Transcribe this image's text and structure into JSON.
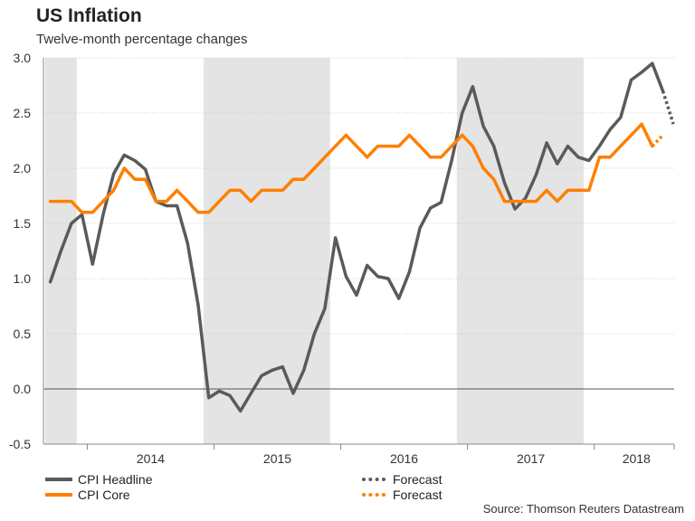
{
  "title": "US Inflation",
  "subtitle": "Twelve-month percentage changes",
  "source": "Source: Thomson Reuters Datastream",
  "colors": {
    "headline": "#5a5a5a",
    "core": "#ff7f00",
    "shade": "#e4e4e4",
    "grid": "#cccccc",
    "zero": "#555555"
  },
  "legend": {
    "headline": "CPI Headline",
    "core": "CPI Core",
    "forecast_headline": "Forecast",
    "forecast_core": "Forecast"
  },
  "chart_data": {
    "type": "line",
    "title": "US Inflation",
    "subtitle": "Twelve-month percentage changes",
    "xlabel": "",
    "ylabel": "",
    "ylim": [
      -0.5,
      3.0
    ],
    "yticks": [
      -0.5,
      0.0,
      0.5,
      1.0,
      1.5,
      2.0,
      2.5,
      3.0
    ],
    "ytick_labels": [
      "-0.5",
      "0.0",
      "0.5",
      "1.0",
      "1.5",
      "2.0",
      "2.5",
      "3.0"
    ],
    "x_start_index": 0,
    "x_end_index": 62,
    "x_index_note": "month index, 0 = Sep 2013",
    "year_labels": [
      {
        "label": "2014",
        "center_index": 9.5
      },
      {
        "label": "2015",
        "center_index": 21.5
      },
      {
        "label": "2016",
        "center_index": 33.5
      },
      {
        "label": "2017",
        "center_index": 45.5
      },
      {
        "label": "2018",
        "center_index": 55.5
      }
    ],
    "shaded_years": [
      {
        "from_index": 0,
        "to_index": 3
      },
      {
        "from_index": 15,
        "to_index": 27
      },
      {
        "from_index": 39,
        "to_index": 51
      }
    ],
    "series": [
      {
        "name": "CPI Headline",
        "start_index": 0,
        "values": [
          0.97,
          1.25,
          1.5,
          1.58,
          1.13,
          1.58,
          1.95,
          2.12,
          2.07,
          1.99,
          1.7,
          1.66,
          1.66,
          1.32,
          0.76,
          -0.08,
          -0.02,
          -0.06,
          -0.2,
          -0.04,
          0.12,
          0.17,
          0.2,
          -0.04,
          0.17,
          0.5,
          0.73,
          1.37,
          1.02,
          0.85,
          1.12,
          1.02,
          1.0,
          0.82,
          1.06,
          1.46,
          1.64,
          1.69,
          2.07,
          2.5,
          2.74,
          2.38,
          2.2,
          1.87,
          1.63,
          1.73,
          1.94,
          2.23,
          2.04,
          2.2,
          2.1,
          2.07,
          2.2,
          2.35,
          2.46,
          2.8,
          2.87,
          2.95,
          2.7
        ]
      },
      {
        "name": "CPI Core",
        "start_index": 0,
        "values": [
          1.7,
          1.7,
          1.7,
          1.6,
          1.6,
          1.7,
          1.8,
          2.0,
          1.9,
          1.9,
          1.7,
          1.7,
          1.8,
          1.7,
          1.6,
          1.6,
          1.7,
          1.8,
          1.8,
          1.7,
          1.8,
          1.8,
          1.8,
          1.9,
          1.9,
          2.0,
          2.1,
          2.2,
          2.3,
          2.2,
          2.1,
          2.2,
          2.2,
          2.2,
          2.3,
          2.2,
          2.1,
          2.1,
          2.2,
          2.3,
          2.2,
          2.0,
          1.9,
          1.7,
          1.7,
          1.7,
          1.7,
          1.8,
          1.7,
          1.8,
          1.8,
          1.8,
          2.1,
          2.1,
          2.2,
          2.3,
          2.4,
          2.2
        ]
      },
      {
        "name": "Forecast (Headline)",
        "start_index": 58,
        "style": "dotted",
        "values": [
          2.7,
          2.4
        ]
      },
      {
        "name": "Forecast (Core)",
        "start_index": 57,
        "style": "dotted",
        "values": [
          2.2,
          2.3
        ]
      }
    ]
  }
}
